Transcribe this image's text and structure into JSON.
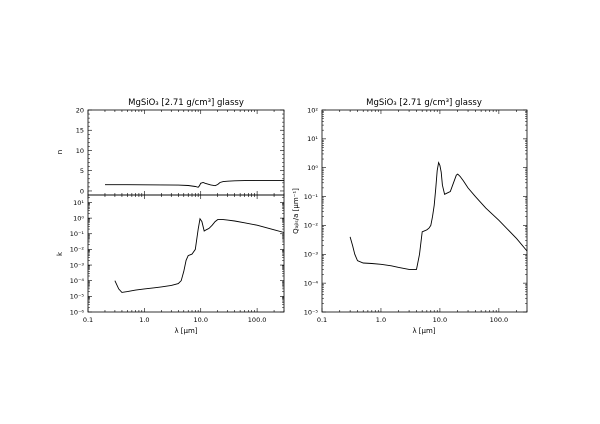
{
  "chart_data": [
    {
      "id": "n",
      "type": "line",
      "title": "MgSiO₃ [2.71 g/cm³] glassy",
      "xlabel": "",
      "ylabel": "n",
      "xscale": "log",
      "yscale": "linear",
      "xlim": [
        0.1,
        300
      ],
      "ylim": [
        -1,
        20
      ],
      "yticks": [
        0,
        5,
        10,
        15,
        20
      ],
      "ytick_labels": [
        "0",
        "5",
        "10",
        "15",
        "20"
      ],
      "series": [
        {
          "x": [
            0.2,
            0.5,
            1.0,
            2.0,
            4.0,
            6.0,
            8.0,
            9.0,
            9.5,
            10.0,
            11.0,
            12.0,
            15.0,
            18.0,
            20.0,
            22.0,
            25.0,
            30.0,
            40.0,
            60.0,
            100.0,
            200.0,
            300.0
          ],
          "y": [
            1.55,
            1.54,
            1.52,
            1.5,
            1.45,
            1.35,
            1.1,
            0.9,
            1.3,
            1.9,
            2.1,
            1.9,
            1.5,
            1.3,
            1.6,
            2.1,
            2.3,
            2.4,
            2.5,
            2.55,
            2.6,
            2.6,
            2.6
          ]
        }
      ]
    },
    {
      "id": "k",
      "type": "line",
      "xlabel": "λ [μm]",
      "ylabel": "k",
      "xscale": "log",
      "yscale": "log",
      "xlim": [
        0.1,
        300
      ],
      "ylim": [
        1e-06,
        30
      ],
      "xticks": [
        0.1,
        1,
        10,
        100
      ],
      "xtick_labels": [
        "0.1",
        "1.0",
        "10.0",
        "100.0"
      ],
      "yticks": [
        1e-06,
        1e-05,
        0.0001,
        0.001,
        0.01,
        0.1,
        1,
        10
      ],
      "ytick_labels": [
        "10⁻⁶",
        "10⁻⁵",
        "10⁻⁴",
        "10⁻³",
        "10⁻²",
        "10⁻¹",
        "10⁰",
        "10¹"
      ],
      "series": [
        {
          "x": [
            0.3,
            0.35,
            0.4,
            0.5,
            0.7,
            1.0,
            1.5,
            2.0,
            3.0,
            4.0,
            4.5,
            5.0,
            5.5,
            6.0,
            6.5,
            7.0,
            8.0,
            9.0,
            9.7,
            10.5,
            11.5,
            12.5,
            14.0,
            16.0,
            18.0,
            20.0,
            25.0,
            30.0,
            40.0,
            60.0,
            100.0,
            200.0,
            300.0
          ],
          "y": [
            0.0001,
            3e-05,
            1.8e-05,
            2e-05,
            2.5e-05,
            3e-05,
            3.5e-05,
            4e-05,
            5e-05,
            6.5e-05,
            0.0001,
            0.0004,
            0.002,
            0.004,
            0.0045,
            0.005,
            0.01,
            0.2,
            0.9,
            0.6,
            0.15,
            0.18,
            0.22,
            0.35,
            0.6,
            0.8,
            0.8,
            0.75,
            0.65,
            0.5,
            0.35,
            0.18,
            0.12
          ]
        }
      ]
    },
    {
      "id": "qabs",
      "type": "line",
      "title": "MgSiO₃ [2.71 g/cm³] glassy",
      "xlabel": "λ [μm]",
      "ylabel": "Qₐᵦₛ/a [μm⁻¹]",
      "xscale": "log",
      "yscale": "log",
      "xlim": [
        0.1,
        300
      ],
      "ylim": [
        1e-05,
        100
      ],
      "xticks": [
        0.1,
        1,
        10,
        100
      ],
      "xtick_labels": [
        "0.1",
        "1.0",
        "10.0",
        "100.0"
      ],
      "yticks": [
        1e-05,
        0.0001,
        0.001,
        0.01,
        0.1,
        1,
        10,
        100
      ],
      "ytick_labels": [
        "10⁻⁵",
        "10⁻⁴",
        "10⁻³",
        "10⁻²",
        "10⁻¹",
        "10⁰",
        "10¹",
        "10²"
      ],
      "series": [
        {
          "x": [
            0.3,
            0.33,
            0.36,
            0.4,
            0.5,
            0.7,
            1.0,
            1.5,
            2.0,
            3.0,
            4.0,
            4.5,
            5.0,
            5.5,
            6.0,
            6.5,
            7.0,
            7.5,
            8.0,
            8.5,
            9.0,
            9.5,
            10.0,
            10.5,
            11.0,
            12.0,
            13.0,
            15.0,
            17.0,
            19.0,
            20.0,
            22.0,
            25.0,
            30.0,
            40.0,
            60.0,
            100.0,
            200.0,
            300.0
          ],
          "y": [
            0.004,
            0.002,
            0.001,
            0.0006,
            0.0005,
            0.00048,
            0.00045,
            0.0004,
            0.00035,
            0.0003,
            0.0003,
            0.001,
            0.006,
            0.0065,
            0.007,
            0.008,
            0.01,
            0.02,
            0.05,
            0.2,
            0.8,
            1.5,
            1.2,
            0.7,
            0.25,
            0.12,
            0.13,
            0.15,
            0.3,
            0.55,
            0.6,
            0.5,
            0.35,
            0.2,
            0.1,
            0.04,
            0.015,
            0.0035,
            0.0013
          ]
        }
      ]
    }
  ]
}
